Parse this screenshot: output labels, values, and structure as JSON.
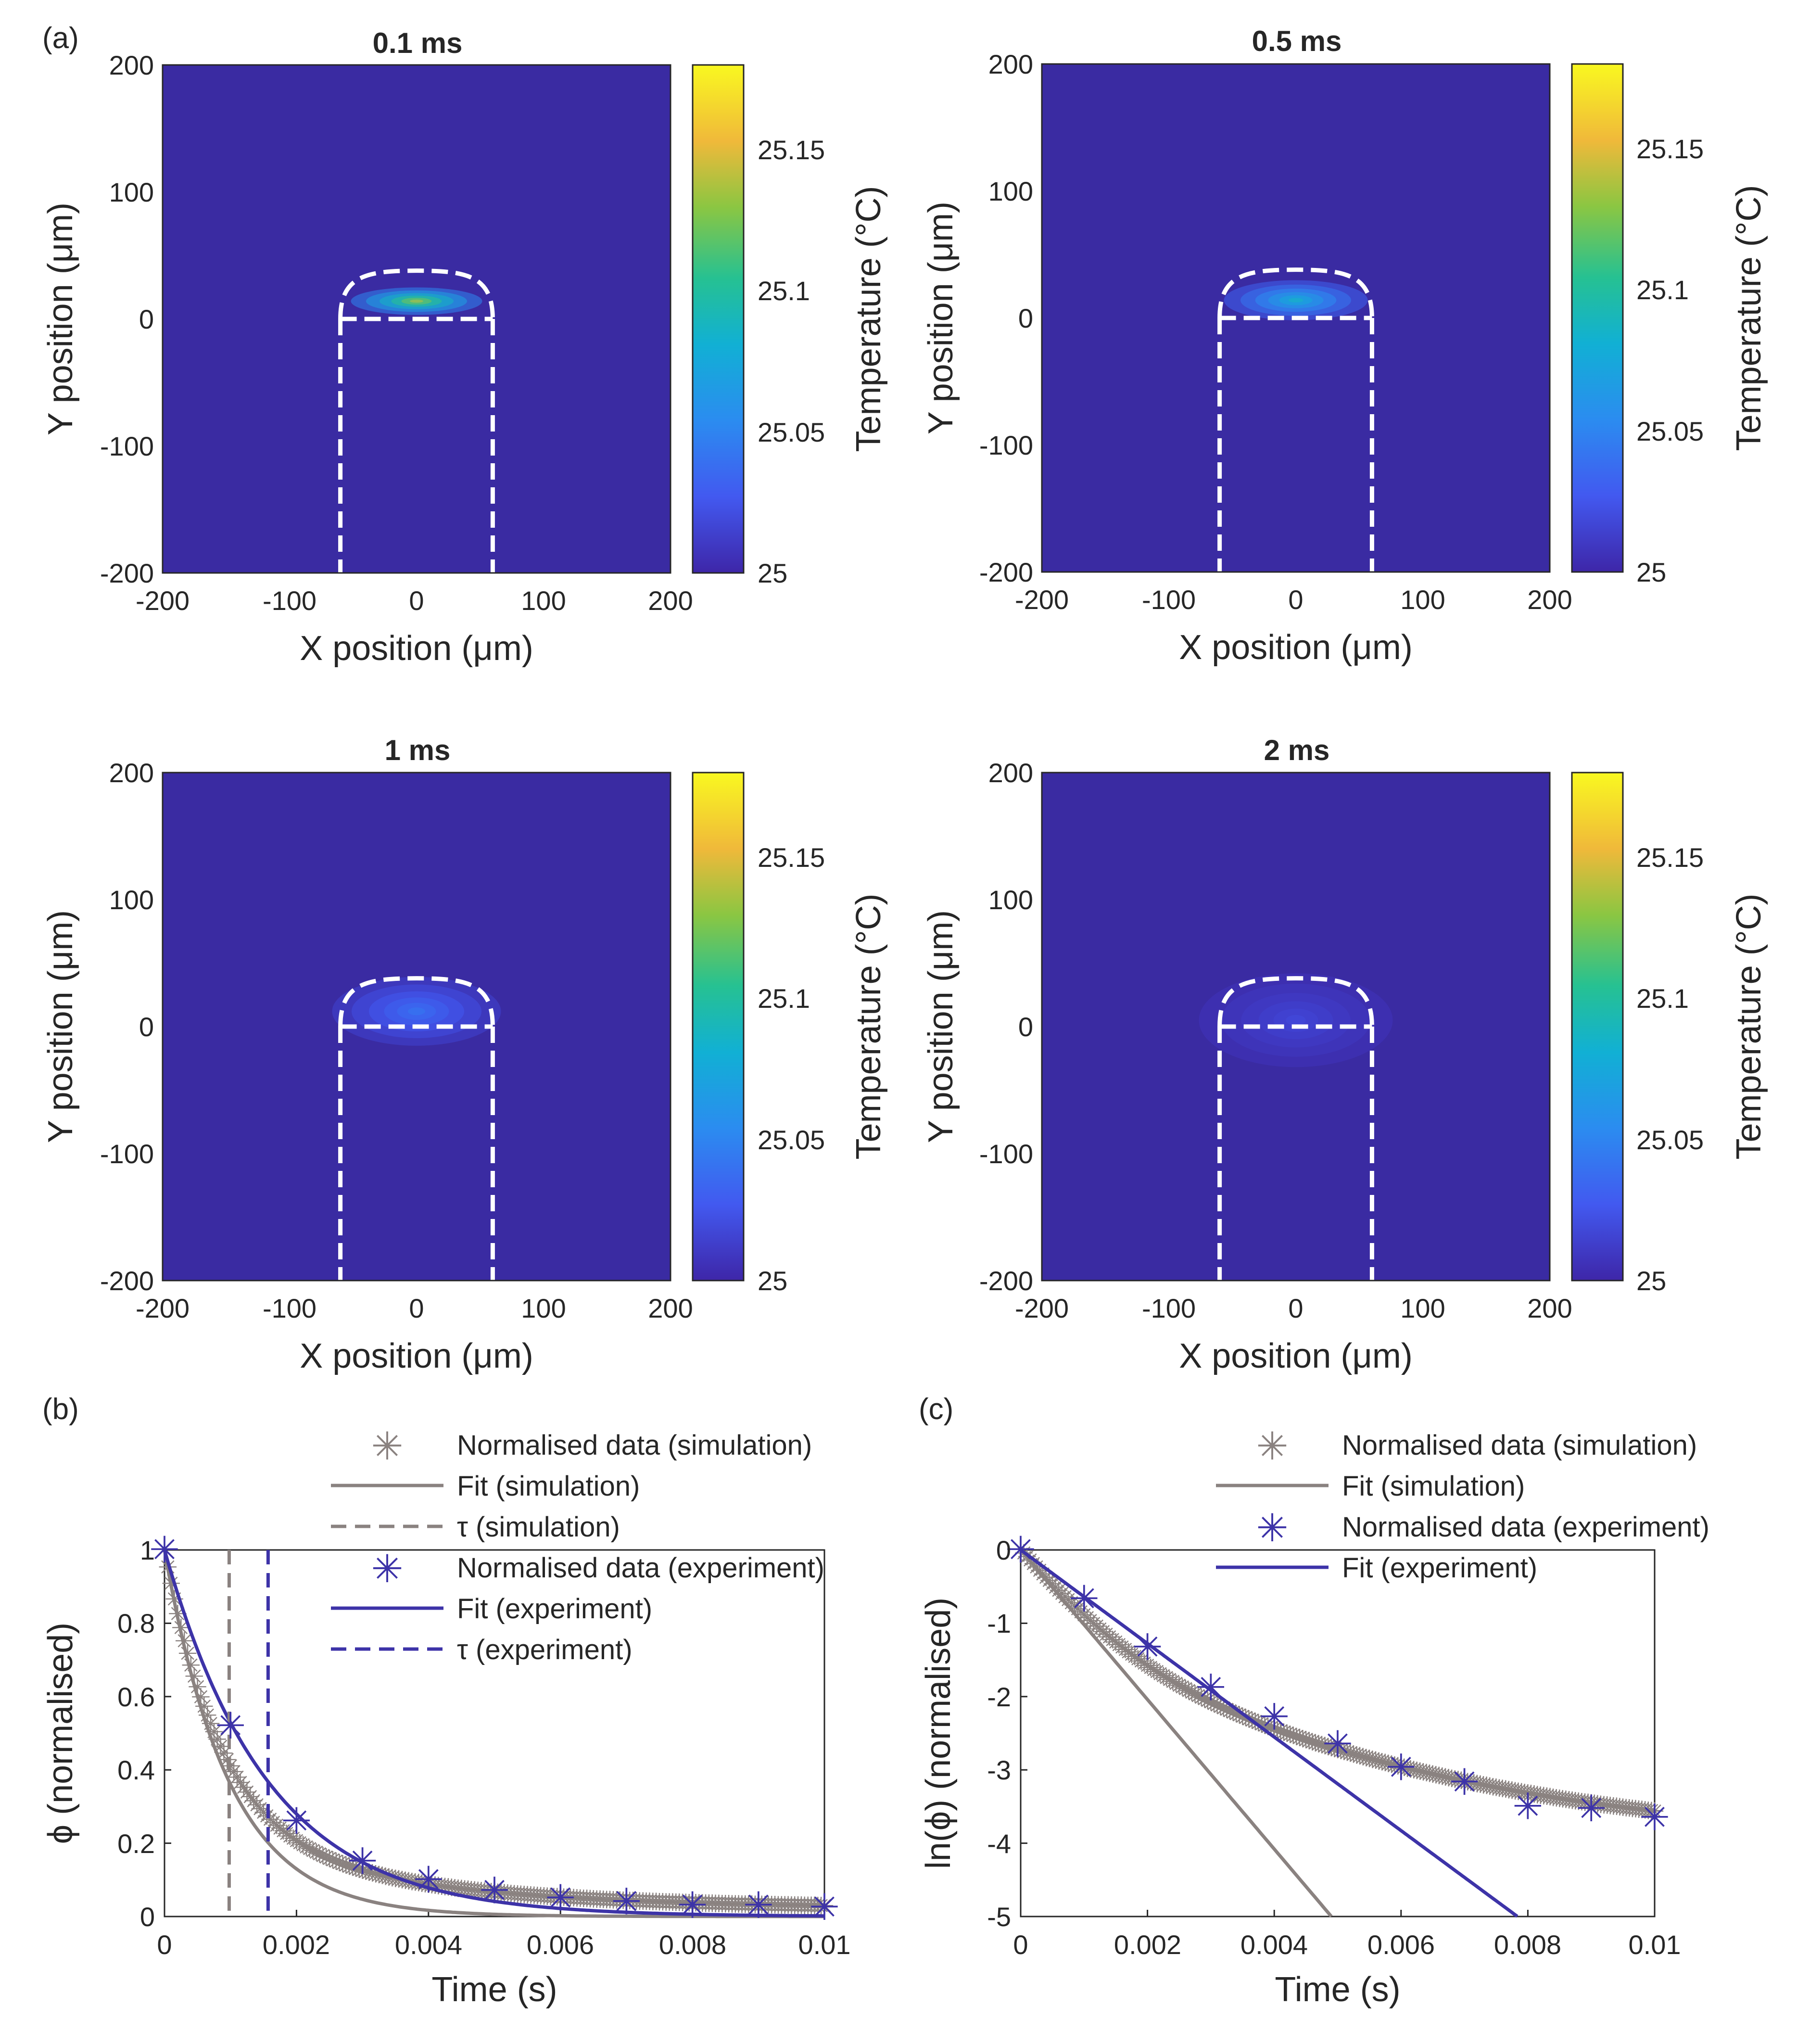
{
  "panel_labels": {
    "a": "(a)",
    "b": "(b)",
    "c": "(c)"
  },
  "colors": {
    "simulation": "#8a8280",
    "experiment": "#3d33a8",
    "heatmap_background": "#3a2ba2",
    "boundary": "#ffffff"
  },
  "chart_data": [
    {
      "type": "heatmap",
      "title": "0.1 ms",
      "xlabel": "X position (μm)",
      "ylabel": "Y position (μm)",
      "xlim": [
        -200,
        200
      ],
      "ylim": [
        -200,
        200
      ],
      "xticks": [
        "-200",
        "-100",
        "0",
        "100",
        "200"
      ],
      "yticks": [
        "200",
        "100",
        "0",
        "-100",
        "-200"
      ],
      "colorbar": {
        "label": "Temperature (°C)",
        "range": [
          25,
          25.18
        ],
        "ticks": [
          "25",
          "25.05",
          "25.1",
          "25.15"
        ]
      },
      "peak_temperature": 25.145,
      "hotspot_center_y": 14
    },
    {
      "type": "heatmap",
      "title": "0.5 ms",
      "xlabel": "X position (μm)",
      "ylabel": "Y position (μm)",
      "xlim": [
        -200,
        200
      ],
      "ylim": [
        -200,
        200
      ],
      "xticks": [
        "-200",
        "-100",
        "0",
        "100",
        "200"
      ],
      "yticks": [
        "200",
        "100",
        "0",
        "-100",
        "-200"
      ],
      "colorbar": {
        "label": "Temperature (°C)",
        "range": [
          25,
          25.18
        ],
        "ticks": [
          "25",
          "25.05",
          "25.1",
          "25.15"
        ]
      },
      "peak_temperature": 25.09,
      "hotspot_center_y": 14
    },
    {
      "type": "heatmap",
      "title": "1 ms",
      "xlabel": "X position (μm)",
      "ylabel": "Y position (μm)",
      "xlim": [
        -200,
        200
      ],
      "ylim": [
        -200,
        200
      ],
      "xticks": [
        "-200",
        "-100",
        "0",
        "100",
        "200"
      ],
      "yticks": [
        "200",
        "100",
        "0",
        "-100",
        "-200"
      ],
      "colorbar": {
        "label": "Temperature (°C)",
        "range": [
          25,
          25.18
        ],
        "ticks": [
          "25",
          "25.05",
          "25.1",
          "25.15"
        ]
      },
      "peak_temperature": 25.045,
      "hotspot_center_y": 12
    },
    {
      "type": "heatmap",
      "title": "2 ms",
      "xlabel": "X position (μm)",
      "ylabel": "Y position (μm)",
      "xlim": [
        -200,
        200
      ],
      "ylim": [
        -200,
        200
      ],
      "xticks": [
        "-200",
        "-100",
        "0",
        "100",
        "200"
      ],
      "yticks": [
        "200",
        "100",
        "0",
        "-100",
        "-200"
      ],
      "colorbar": {
        "label": "Temperature (°C)",
        "range": [
          25,
          25.18
        ],
        "ticks": [
          "25",
          "25.05",
          "25.1",
          "25.15"
        ]
      },
      "peak_temperature": 25.02,
      "hotspot_center_y": 5
    },
    {
      "type": "scatter",
      "xlabel": "Time (s)",
      "ylabel": "ϕ (normalised)",
      "xlim": [
        0,
        0.01
      ],
      "ylim": [
        0,
        1
      ],
      "xticks": [
        "0",
        "0.002",
        "0.004",
        "0.006",
        "0.008",
        "0.01"
      ],
      "yticks": [
        "1",
        "0.8",
        "0.6",
        "0.4",
        "0.2",
        "0"
      ],
      "legend_position": "top-right",
      "legend": [
        "Normalised data (simulation)",
        "Fit (simulation)",
        "τ (simulation)",
        "Normalised data (experiment)",
        "Fit (experiment)",
        "τ (experiment)"
      ],
      "tau_simulation": 0.00098,
      "tau_experiment": 0.00157,
      "experiment_x": [
        0,
        0.001,
        0.002,
        0.003,
        0.004,
        0.005,
        0.006,
        0.007,
        0.008,
        0.009,
        0.01
      ],
      "experiment_y": [
        1.0,
        0.52,
        0.26,
        0.15,
        0.1,
        0.07,
        0.05,
        0.04,
        0.03,
        0.03,
        0.025
      ]
    },
    {
      "type": "scatter",
      "xlabel": "Time (s)",
      "ylabel": "ln(ϕ) (normalised)",
      "xlim": [
        0,
        0.01
      ],
      "ylim": [
        -5,
        0
      ],
      "xticks": [
        "0",
        "0.002",
        "0.004",
        "0.006",
        "0.008",
        "0.01"
      ],
      "yticks": [
        "0",
        "-1",
        "-2",
        "-3",
        "-4",
        "-5"
      ],
      "legend_position": "top-right",
      "legend": [
        "Normalised data (simulation)",
        "Fit (simulation)",
        "Normalised data (experiment)",
        "Fit (experiment)"
      ],
      "fit_simulation_slope": -1020,
      "fit_experiment_slope": -638,
      "experiment_x": [
        0,
        0.001,
        0.002,
        0.003,
        0.004,
        0.005,
        0.006,
        0.007,
        0.008,
        0.009,
        0.01
      ],
      "experiment_y": [
        0,
        -0.67,
        -1.33,
        -1.88,
        -2.28,
        -2.65,
        -2.97,
        -3.17,
        -3.5,
        -3.53,
        -3.65
      ]
    }
  ]
}
